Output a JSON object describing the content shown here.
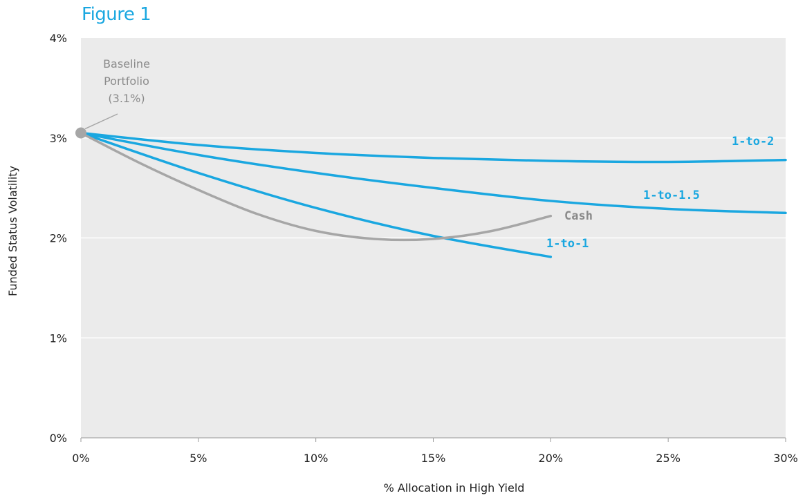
{
  "figure_title": "Figure 1",
  "chart_data": {
    "type": "line",
    "xlabel": "% Allocation in High Yield",
    "ylabel": "Funded Status Volatility",
    "xlim": [
      0,
      30
    ],
    "ylim": [
      0,
      4
    ],
    "x_ticks": [
      "0%",
      "5%",
      "10%",
      "15%",
      "20%",
      "25%",
      "30%"
    ],
    "y_ticks": [
      "0%",
      "1%",
      "2%",
      "3%",
      "4%"
    ],
    "grid": "horizontal",
    "background": "#ebebeb",
    "series": [
      {
        "name": "1-to-2",
        "color": "#1aa7e0",
        "x": [
          0,
          5,
          10,
          15,
          20,
          25,
          30
        ],
        "y": [
          3.05,
          2.93,
          2.85,
          2.8,
          2.77,
          2.76,
          2.78
        ]
      },
      {
        "name": "1-to-1.5",
        "color": "#1aa7e0",
        "x": [
          0,
          5,
          10,
          15,
          20,
          25,
          30
        ],
        "y": [
          3.05,
          2.83,
          2.65,
          2.5,
          2.37,
          2.29,
          2.25
        ]
      },
      {
        "name": "1-to-1",
        "color": "#1aa7e0",
        "x": [
          0,
          5,
          10,
          15,
          20
        ],
        "y": [
          3.05,
          2.65,
          2.3,
          2.02,
          1.81
        ]
      },
      {
        "name": "Cash",
        "color": "#a6a6a6",
        "x": [
          0,
          2.5,
          5,
          7.5,
          10,
          12.5,
          15,
          17.5,
          20
        ],
        "y": [
          3.05,
          2.75,
          2.48,
          2.24,
          2.07,
          1.99,
          1.99,
          2.07,
          2.22
        ]
      }
    ],
    "baseline": {
      "label_lines": [
        "Baseline",
        "Portfolio",
        "(3.1%)"
      ],
      "x": 0,
      "y": 3.05,
      "color": "#a6a6a6"
    }
  }
}
